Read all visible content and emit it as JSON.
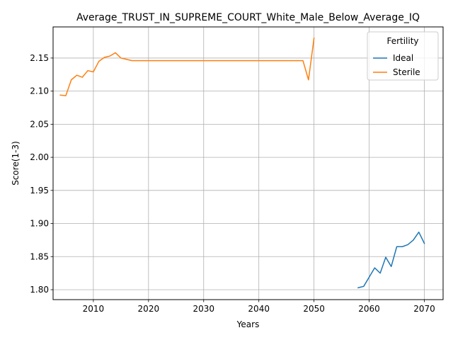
{
  "chart_data": {
    "type": "line",
    "title": "Average_TRUST_IN_SUPREME_COURT_White_Male_Below_Average_IQ",
    "xlabel": "Years",
    "ylabel": "Score(1-3)",
    "xlim": [
      2002.7,
      2073.4
    ],
    "ylim": [
      1.785,
      2.197
    ],
    "xticks": [
      2010,
      2020,
      2030,
      2040,
      2050,
      2060,
      2070
    ],
    "xtick_labels": [
      "2010",
      "2020",
      "2030",
      "2040",
      "2050",
      "2060",
      "2070"
    ],
    "yticks": [
      1.8,
      1.85,
      1.9,
      1.95,
      2.0,
      2.05,
      2.1,
      2.15
    ],
    "ytick_labels": [
      "1.80",
      "1.85",
      "1.90",
      "1.95",
      "2.00",
      "2.05",
      "2.10",
      "2.15"
    ],
    "grid": true,
    "legend": {
      "title": "Fertility",
      "placement": "upper right"
    },
    "series": [
      {
        "name": "Ideal",
        "color": "#1f77b4",
        "x": [
          2058,
          2059,
          2060,
          2061,
          2062,
          2063,
          2064,
          2065,
          2066,
          2067,
          2068,
          2069,
          2070
        ],
        "y": [
          1.803,
          1.805,
          1.819,
          1.833,
          1.825,
          1.849,
          1.835,
          1.865,
          1.865,
          1.868,
          1.875,
          1.887,
          1.87
        ]
      },
      {
        "name": "Sterile",
        "color": "#ff7f0e",
        "x": [
          2004,
          2005,
          2006,
          2007,
          2008,
          2009,
          2010,
          2011,
          2012,
          2013,
          2014,
          2015,
          2016,
          2017,
          2018,
          2019,
          2020,
          2025,
          2030,
          2035,
          2040,
          2045,
          2048,
          2049,
          2050
        ],
        "y": [
          2.094,
          2.093,
          2.117,
          2.124,
          2.121,
          2.131,
          2.129,
          2.145,
          2.151,
          2.153,
          2.158,
          2.15,
          2.148,
          2.146,
          2.146,
          2.146,
          2.146,
          2.146,
          2.146,
          2.146,
          2.146,
          2.146,
          2.146,
          2.117,
          2.18
        ]
      }
    ]
  }
}
